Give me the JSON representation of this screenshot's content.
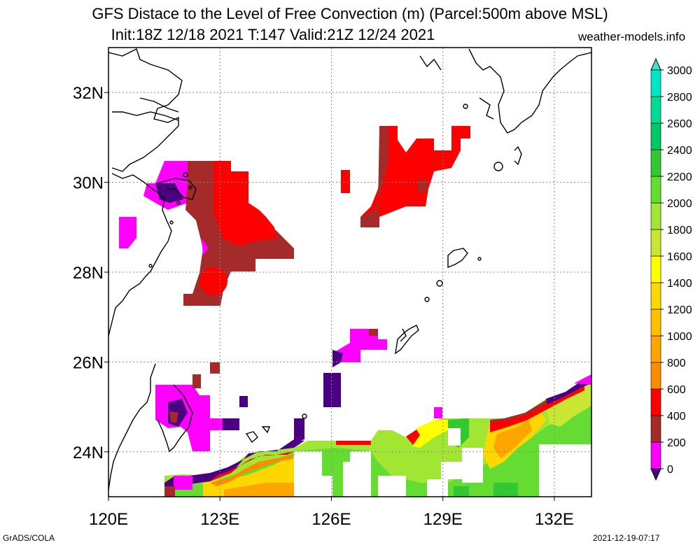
{
  "title": {
    "line1": "GFS Distace to the Level of Free Convection (m) (Parcel:500m above MSL)",
    "line2": "Init:18Z 12/18 2021 T:147 Valid:21Z 12/24 2021",
    "site": "weather-models.info"
  },
  "map": {
    "lon_range": [
      120,
      133
    ],
    "lat_range": [
      23,
      33
    ],
    "lon_ticks": [
      {
        "value": 120,
        "label": "120E"
      },
      {
        "value": 123,
        "label": "123E"
      },
      {
        "value": 126,
        "label": "126E"
      },
      {
        "value": 129,
        "label": "129E"
      },
      {
        "value": 132,
        "label": "132E"
      }
    ],
    "lat_ticks": [
      {
        "value": 24,
        "label": "24N"
      },
      {
        "value": 26,
        "label": "26N"
      },
      {
        "value": 28,
        "label": "28N"
      },
      {
        "value": 30,
        "label": "30N"
      },
      {
        "value": 32,
        "label": "32N"
      }
    ],
    "grid": true
  },
  "colorbar": {
    "levels": [
      "0",
      "200",
      "400",
      "600",
      "800",
      "1000",
      "1200",
      "1400",
      "1600",
      "1800",
      "2000",
      "2200",
      "2400",
      "2600",
      "2800",
      "3000"
    ],
    "colors": [
      "#4b0082",
      "#ff00ff",
      "#a52a2a",
      "#ff0000",
      "#ff8c00",
      "#ffa500",
      "#ffc000",
      "#ffd700",
      "#ffff00",
      "#c8e632",
      "#a0e632",
      "#64dc32",
      "#32c832",
      "#00c864",
      "#00dc96",
      "#00e6c8",
      "#40e0d0"
    ]
  },
  "footer": {
    "left": "GrADS/COLA",
    "right": "2021-12-19-07:17"
  }
}
